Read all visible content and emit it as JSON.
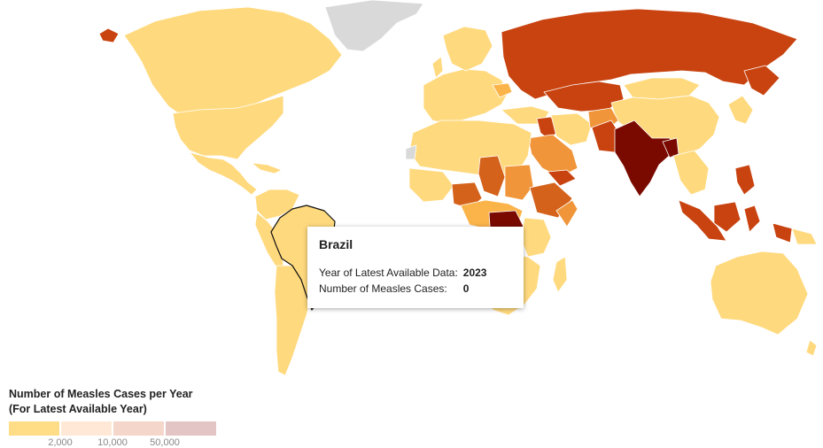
{
  "map": {
    "colors": {
      "no_data": "#d9d9d9",
      "low": "#ffd97d",
      "light": "#ffcf7a",
      "mid_light": "#fbb44a",
      "mid": "#f0953a",
      "orange_dark": "#d4621b",
      "dark": "#c84310",
      "darkest": "#7a0a00",
      "outline_highlight": "#111111"
    }
  },
  "tooltip": {
    "country": "Brazil",
    "year_label": "Year of Latest Available Data:",
    "year_value": "2023",
    "cases_label": "Number of Measles Cases:",
    "cases_value": "0"
  },
  "legend": {
    "title_line1": "Number of Measles Cases per Year",
    "title_line2": "(For Latest Available Year)",
    "swatches": [
      "#ffdc86",
      "#ffe9d6",
      "#f5d6cb",
      "#e3c5c5"
    ],
    "ticks": [
      "2,000",
      "10,000",
      "50,000"
    ]
  }
}
